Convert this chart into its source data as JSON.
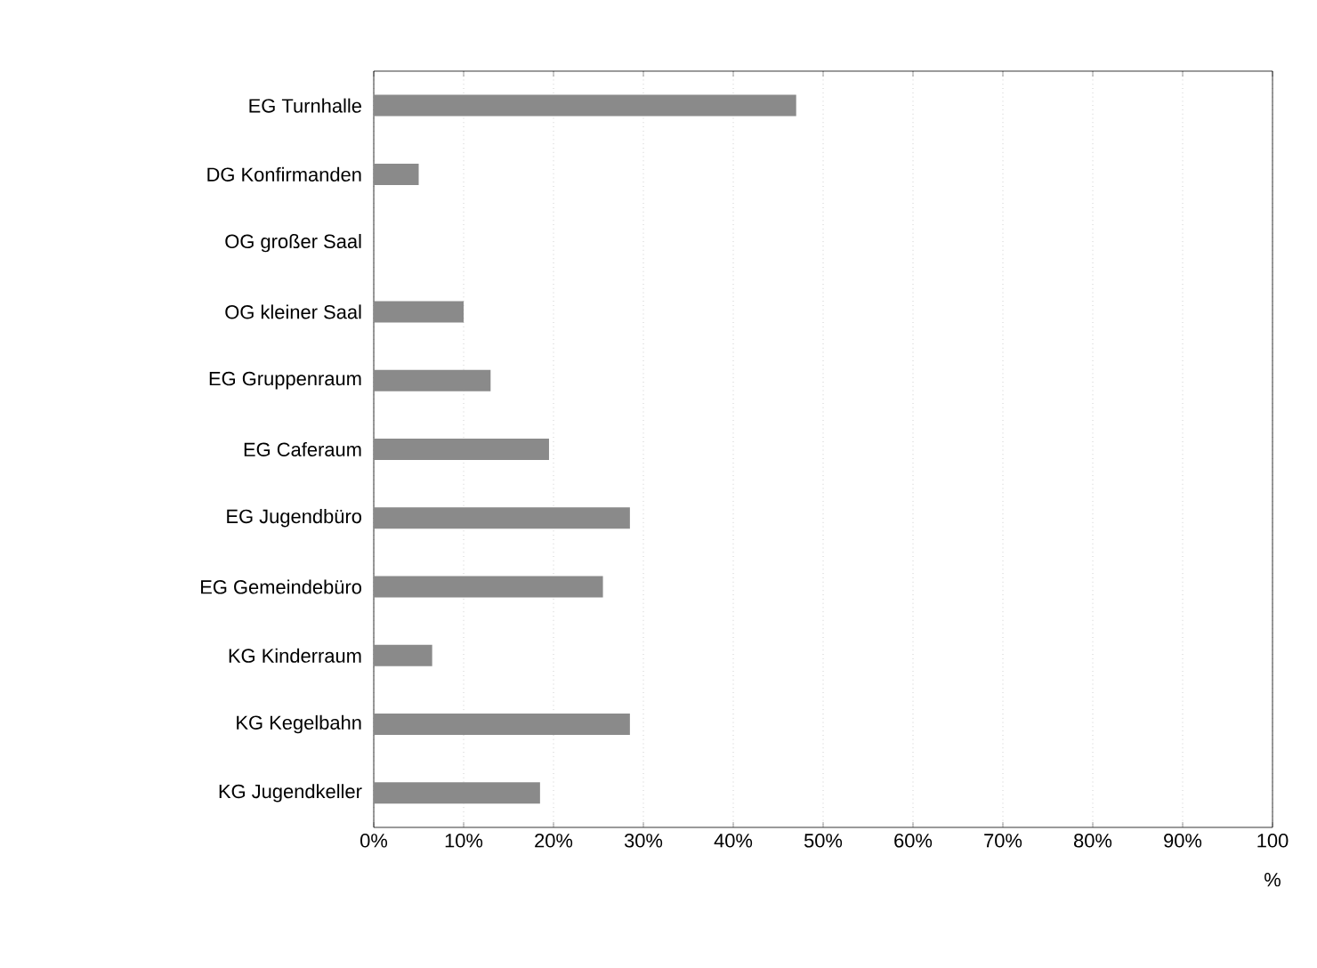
{
  "chart_data": {
    "type": "bar",
    "orientation": "horizontal",
    "categories": [
      "EG Turnhalle",
      "DG Konfirmanden",
      "OG großer Saal",
      "OG kleiner Saal",
      "EG Gruppenraum",
      "EG Caferaum",
      "EG Jugendbüro",
      "EG Gemeindebüro",
      "KG Kinderraum",
      "KG Kegelbahn",
      "KG Jugendkeller"
    ],
    "values": [
      47,
      5,
      0,
      10,
      13,
      19.5,
      28.5,
      25.5,
      6.5,
      28.5,
      18.5
    ],
    "color": "#8a8a8a",
    "xlim": [
      0,
      100
    ],
    "xticks": [
      {
        "value": 0,
        "label": "0%"
      },
      {
        "value": 10,
        "label": "10%"
      },
      {
        "value": 20,
        "label": "20%"
      },
      {
        "value": 30,
        "label": "30%"
      },
      {
        "value": 40,
        "label": "40%"
      },
      {
        "value": 50,
        "label": "50%"
      },
      {
        "value": 60,
        "label": "60%"
      },
      {
        "value": 70,
        "label": "70%"
      },
      {
        "value": 80,
        "label": "80%"
      },
      {
        "value": 90,
        "label": "90%"
      },
      {
        "value": 100,
        "label": "100"
      }
    ],
    "xlabel": "%",
    "grid": "x"
  }
}
